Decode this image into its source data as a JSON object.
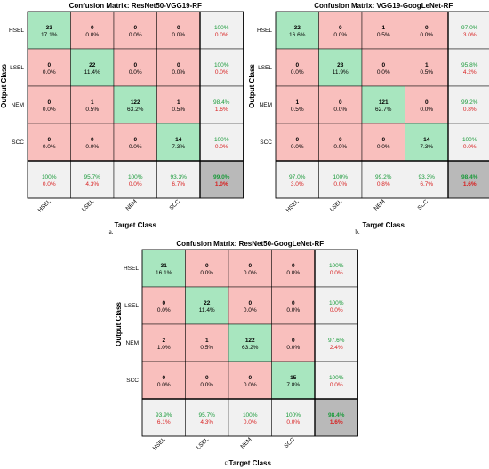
{
  "colors": {
    "diagonal": "#a8e6bf",
    "off_diagonal": "#f9bfbd",
    "summary": "#f1f1f1",
    "overall": "#b9b9b9",
    "good_text": "#1a9a3a",
    "bad_text": "#d81e1e"
  },
  "chart_data": [
    {
      "type": "heatmap",
      "title": "Confusion Matrix: ResNet50-VGG19-RF",
      "xlabel": "Target Class",
      "ylabel": "Output Class",
      "caption": "a.",
      "classes": [
        "HSEL",
        "LSEL",
        "NEM",
        "SCC"
      ],
      "counts": [
        [
          33,
          0,
          0,
          0
        ],
        [
          0,
          22,
          0,
          0
        ],
        [
          0,
          1,
          122,
          1
        ],
        [
          0,
          0,
          0,
          14
        ]
      ],
      "cell_percent": [
        [
          "17.1%",
          "0.0%",
          "0.0%",
          "0.0%"
        ],
        [
          "0.0%",
          "11.4%",
          "0.0%",
          "0.0%"
        ],
        [
          "0.0%",
          "0.5%",
          "63.2%",
          "0.5%"
        ],
        [
          "0.0%",
          "0.0%",
          "0.0%",
          "7.3%"
        ]
      ],
      "row_summary": [
        [
          "100%",
          "0.0%"
        ],
        [
          "100%",
          "0.0%"
        ],
        [
          "98.4%",
          "1.6%"
        ],
        [
          "100%",
          "0.0%"
        ]
      ],
      "col_summary": [
        [
          "100%",
          "0.0%"
        ],
        [
          "95.7%",
          "4.3%"
        ],
        [
          "100%",
          "0.0%"
        ],
        [
          "93.3%",
          "6.7%"
        ]
      ],
      "overall": [
        "99.0%",
        "1.0%"
      ]
    },
    {
      "type": "heatmap",
      "title": "Confusion Matrix: VGG19-GoogLeNet-RF",
      "xlabel": "Target Class",
      "ylabel": "Output Class",
      "caption": "b.",
      "classes": [
        "HSEL",
        "LSEL",
        "NEM",
        "SCC"
      ],
      "counts": [
        [
          32,
          0,
          1,
          0
        ],
        [
          0,
          23,
          0,
          1
        ],
        [
          1,
          0,
          121,
          0
        ],
        [
          0,
          0,
          0,
          14
        ]
      ],
      "cell_percent": [
        [
          "16.6%",
          "0.0%",
          "0.5%",
          "0.0%"
        ],
        [
          "0.0%",
          "11.9%",
          "0.0%",
          "0.5%"
        ],
        [
          "0.5%",
          "0.0%",
          "62.7%",
          "0.0%"
        ],
        [
          "0.0%",
          "0.0%",
          "0.0%",
          "7.3%"
        ]
      ],
      "row_summary": [
        [
          "97.0%",
          "3.0%"
        ],
        [
          "95.8%",
          "4.2%"
        ],
        [
          "99.2%",
          "0.8%"
        ],
        [
          "100%",
          "0.0%"
        ]
      ],
      "col_summary": [
        [
          "97.0%",
          "3.0%"
        ],
        [
          "100%",
          "0.0%"
        ],
        [
          "99.2%",
          "0.8%"
        ],
        [
          "93.3%",
          "6.7%"
        ]
      ],
      "overall": [
        "98.4%",
        "1.6%"
      ]
    },
    {
      "type": "heatmap",
      "title": "Confusion Matrix: ResNet50-GoogLeNet-RF",
      "xlabel": "Target Class",
      "ylabel": "Output Class",
      "caption": "c.",
      "classes": [
        "HSEL",
        "LSEL",
        "NEM",
        "SCC"
      ],
      "counts": [
        [
          31,
          0,
          0,
          0
        ],
        [
          0,
          22,
          0,
          0
        ],
        [
          2,
          1,
          122,
          0
        ],
        [
          0,
          0,
          0,
          15
        ]
      ],
      "cell_percent": [
        [
          "16.1%",
          "0.0%",
          "0.0%",
          "0.0%"
        ],
        [
          "0.0%",
          "11.4%",
          "0.0%",
          "0.0%"
        ],
        [
          "1.0%",
          "0.5%",
          "63.2%",
          "0.0%"
        ],
        [
          "0.0%",
          "0.0%",
          "0.0%",
          "7.8%"
        ]
      ],
      "row_summary": [
        [
          "100%",
          "0.0%"
        ],
        [
          "100%",
          "0.0%"
        ],
        [
          "97.6%",
          "2.4%"
        ],
        [
          "100%",
          "0.0%"
        ]
      ],
      "col_summary": [
        [
          "93.9%",
          "6.1%"
        ],
        [
          "95.7%",
          "4.3%"
        ],
        [
          "100%",
          "0.0%"
        ],
        [
          "100%",
          "0.0%"
        ]
      ],
      "overall": [
        "98.4%",
        "1.6%"
      ]
    }
  ]
}
